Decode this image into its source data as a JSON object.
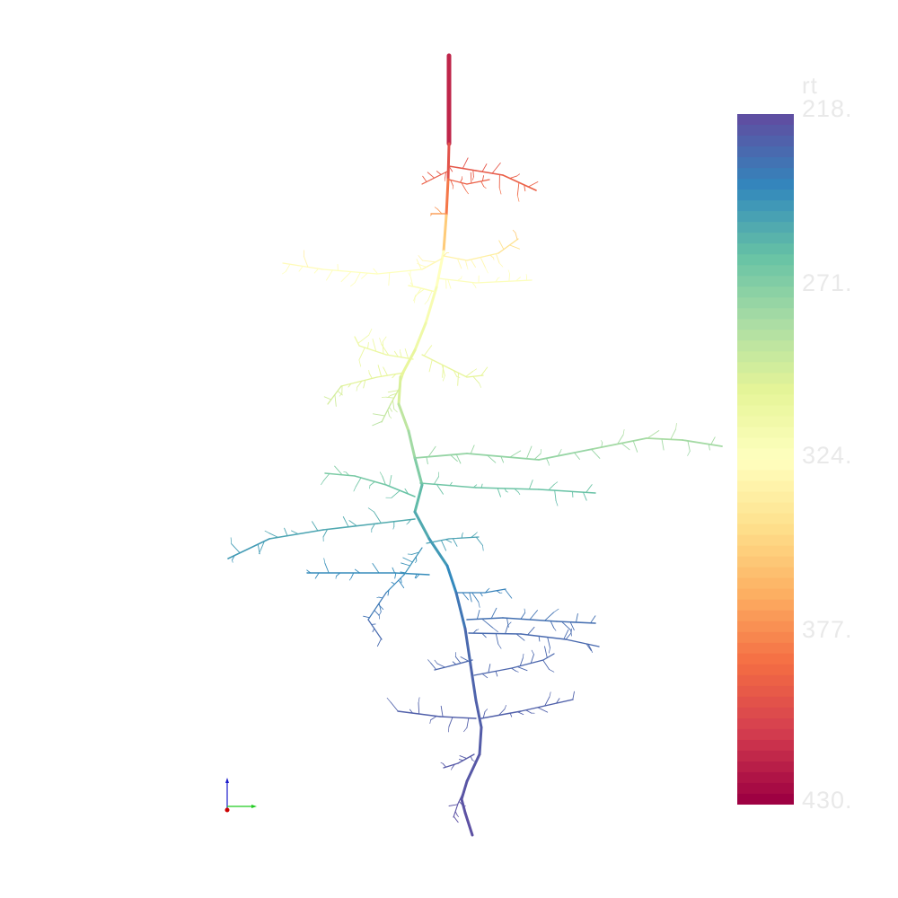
{
  "scene": {
    "background": "#ffffff",
    "description_colors": {
      "low_end": "#9e0142",
      "high_end": "#5e4fa2"
    }
  },
  "colorbar": {
    "title": "rt",
    "tick_labels": [
      "218.",
      "271.",
      "324.",
      "377.",
      "430."
    ],
    "palette": [
      "#5e4fa2",
      "#3288bd",
      "#66c2a5",
      "#abdda4",
      "#e6f598",
      "#ffffbf",
      "#fee08b",
      "#fdae61",
      "#f46d43",
      "#d53e4f",
      "#9e0142"
    ],
    "label_color": "#e9e9e9"
  },
  "axes_widget": {
    "x_color": "#22cc22",
    "z_color": "#1a1acc",
    "origin_color": "#cc0000"
  }
}
